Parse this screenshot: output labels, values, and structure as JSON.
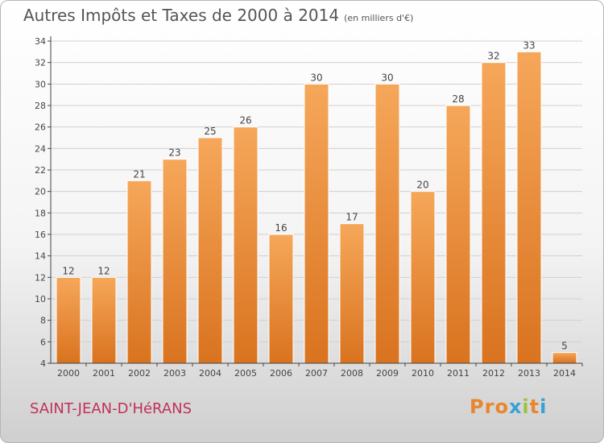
{
  "header": {
    "title": "Autres Impôts et Taxes de 2000 à 2014",
    "unit": "(en milliers d'€)"
  },
  "footer": {
    "town": "SAINT-JEAN-D'HéRANS",
    "logo": "Proxiti",
    "logo_colors": [
      "#e8862c",
      "#e8862c",
      "#e8862c",
      "#3aa0d8",
      "#9bc33b",
      "#e8862c",
      "#3aa0d8"
    ]
  },
  "colors": {
    "bar_light": "#f6a75a",
    "bar_dark": "#d9731f",
    "grid": "#d0d0d0",
    "axis": "#444444",
    "label": "#444444"
  },
  "chart_data": {
    "type": "bar",
    "categories": [
      "2000",
      "2001",
      "2002",
      "2003",
      "2004",
      "2005",
      "2006",
      "2007",
      "2008",
      "2009",
      "2010",
      "2011",
      "2012",
      "2013",
      "2014"
    ],
    "values": [
      12,
      12,
      21,
      23,
      25,
      26,
      16,
      30,
      17,
      30,
      20,
      28,
      32,
      33,
      5
    ],
    "ylim": [
      4,
      34
    ],
    "yticks": [
      4,
      6,
      8,
      10,
      12,
      14,
      16,
      18,
      20,
      22,
      24,
      26,
      28,
      30,
      32,
      34
    ],
    "grid": true,
    "data_labels": true
  }
}
